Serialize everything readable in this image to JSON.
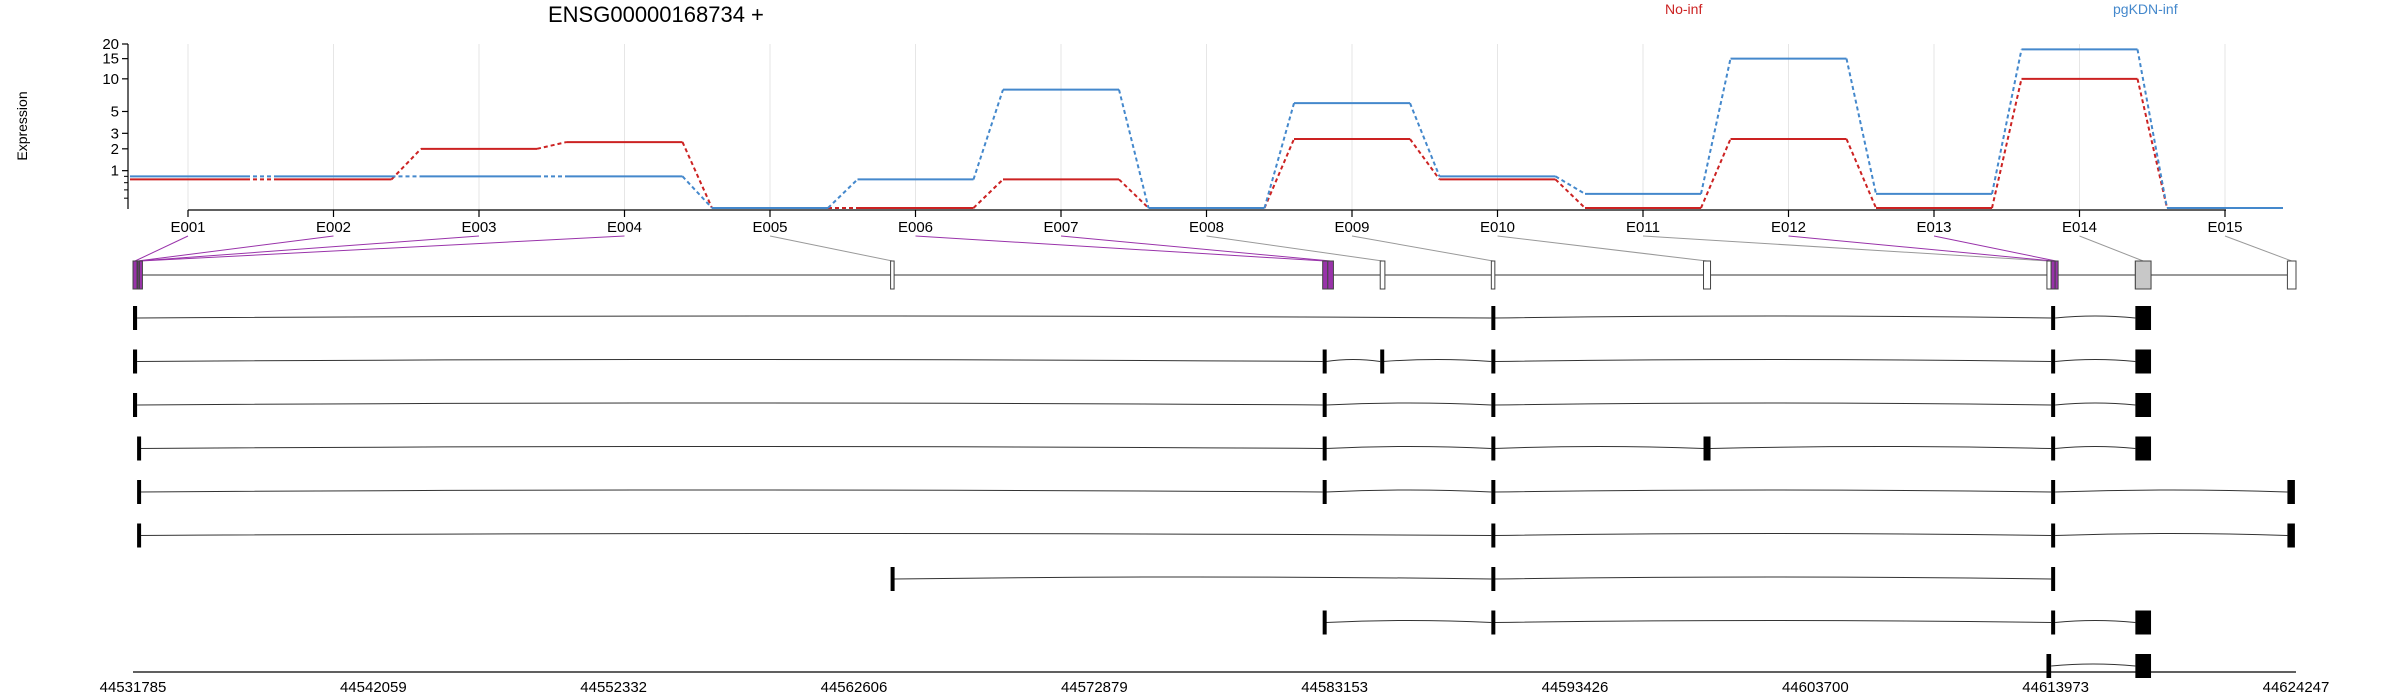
{
  "header": {
    "title": "ENSG00000168734 +",
    "ylabel": "Expression"
  },
  "colors": {
    "No-inf": "#cc2222",
    "pgKDN-inf": "#4488cc",
    "highlight": "#9933aa",
    "axis": "#000000",
    "grid": "#e6e6e6"
  },
  "chart_data": {
    "type": "line",
    "title": "ENSG00000168734 +",
    "ylabel": "Expression",
    "yscale": "log",
    "yticks": [
      1,
      2,
      3,
      5,
      10,
      15,
      20
    ],
    "categories": [
      "E001",
      "E002",
      "E003",
      "E004",
      "E005",
      "E006",
      "E007",
      "E008",
      "E009",
      "E010",
      "E011",
      "E012",
      "E013",
      "E014",
      "E015"
    ],
    "series": [
      {
        "name": "No-inf",
        "values": [
          0.7,
          0.7,
          2.0,
          2.4,
          0.0,
          0.0,
          0.7,
          0.0,
          2.6,
          0.7,
          0.0,
          2.6,
          0.0,
          10.0,
          0.0
        ]
      },
      {
        "name": "pgKDN-inf",
        "values": [
          0.8,
          0.8,
          0.8,
          0.8,
          0.0,
          0.7,
          8.0,
          0.0,
          6.0,
          0.8,
          0.3,
          15.0,
          0.3,
          18.0,
          0.0
        ]
      }
    ],
    "legend": [
      "No-inf",
      "pgKDN-inf"
    ],
    "legend_position": "top-right"
  },
  "gene_model": {
    "genomic_ticks": [
      "44531785",
      "44542059",
      "44552332",
      "44562606",
      "44572879",
      "44583153",
      "44593426",
      "44603700",
      "44613973",
      "44624247"
    ],
    "genomic_start": 44531785,
    "genomic_end": 44624247,
    "exons": [
      {
        "id": "E001",
        "start": 44531785,
        "end": 44531960,
        "highlight": true
      },
      {
        "id": "E002",
        "start": 44531960,
        "end": 44532000,
        "highlight": true
      },
      {
        "id": "E003",
        "start": 44532000,
        "end": 44532060,
        "highlight": true
      },
      {
        "id": "E004",
        "start": 44532060,
        "end": 44532110,
        "highlight": true
      },
      {
        "id": "E005",
        "start": 44564170,
        "end": 44564320,
        "highlight": false
      },
      {
        "id": "E006",
        "start": 44582640,
        "end": 44582860,
        "highlight": true
      },
      {
        "id": "E007",
        "start": 44582860,
        "end": 44583100,
        "highlight": true
      },
      {
        "id": "E008",
        "start": 44585100,
        "end": 44585300,
        "highlight": false
      },
      {
        "id": "E009",
        "start": 44589850,
        "end": 44590000,
        "highlight": false
      },
      {
        "id": "E010",
        "start": 44598920,
        "end": 44599220,
        "highlight": false
      },
      {
        "id": "E011",
        "start": 44613600,
        "end": 44613780,
        "highlight": false
      },
      {
        "id": "E012",
        "start": 44613780,
        "end": 44613950,
        "highlight": true
      },
      {
        "id": "E013",
        "start": 44613950,
        "end": 44614030,
        "highlight": true
      },
      {
        "id": "E014",
        "start": 44617380,
        "end": 44618050,
        "highlight": false
      },
      {
        "id": "E015",
        "start": 44623880,
        "end": 44624247,
        "highlight": false
      }
    ],
    "transcripts": [
      [
        [
          44531785,
          44531960
        ],
        [
          44589850,
          44589950
        ],
        [
          44613780,
          44613950
        ],
        [
          44617380,
          44618050
        ]
      ],
      [
        [
          44531785,
          44531960
        ],
        [
          44582640,
          44582780
        ],
        [
          44585100,
          44585220
        ],
        [
          44589850,
          44589950
        ],
        [
          44613780,
          44613950
        ],
        [
          44617380,
          44618050
        ]
      ],
      [
        [
          44531785,
          44531960
        ],
        [
          44582640,
          44582780
        ],
        [
          44589850,
          44589950
        ],
        [
          44613780,
          44613950
        ],
        [
          44617380,
          44618050
        ]
      ],
      [
        [
          44531960,
          44532020
        ],
        [
          44582640,
          44582780
        ],
        [
          44589850,
          44589950
        ],
        [
          44598920,
          44599220
        ],
        [
          44613780,
          44613950
        ],
        [
          44617380,
          44618050
        ]
      ],
      [
        [
          44531960,
          44532020
        ],
        [
          44582640,
          44582780
        ],
        [
          44589850,
          44589950
        ],
        [
          44613780,
          44613950
        ],
        [
          44623880,
          44624200
        ]
      ],
      [
        [
          44531960,
          44532020
        ],
        [
          44589850,
          44589950
        ],
        [
          44613780,
          44613950
        ],
        [
          44623880,
          44624200
        ]
      ],
      [
        [
          44564170,
          44564320
        ],
        [
          44589850,
          44589950
        ],
        [
          44613780,
          44613950
        ]
      ],
      [
        [
          44582640,
          44582780
        ],
        [
          44589850,
          44589950
        ],
        [
          44613780,
          44613950
        ],
        [
          44617380,
          44618050
        ]
      ],
      [
        [
          44613580,
          44613780
        ],
        [
          44617380,
          44618050
        ]
      ]
    ]
  }
}
